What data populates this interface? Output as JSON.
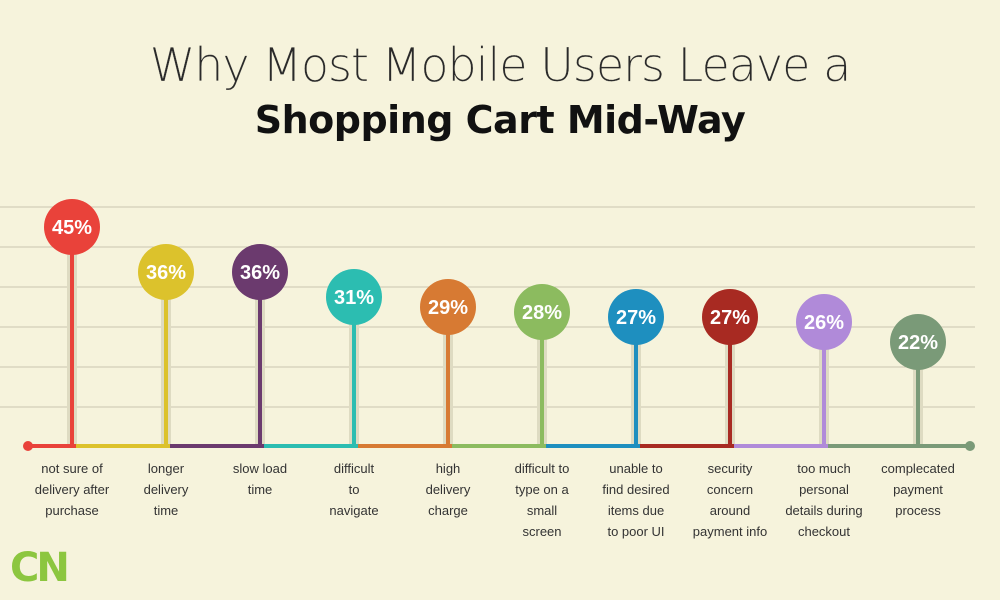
{
  "title": {
    "line1": "Why Most Mobile Users Leave a",
    "line2": "Shopping Cart Mid-Way"
  },
  "logo": "CN",
  "chart_data": {
    "type": "bar",
    "ylim": [
      0,
      60
    ],
    "grid": true,
    "categories": [
      [
        "not sure of",
        "delivery after",
        "purchase"
      ],
      [
        "longer",
        "delivery",
        "time"
      ],
      [
        "slow load",
        "time"
      ],
      [
        "difficult",
        "to",
        "navigate"
      ],
      [
        "high",
        "delivery",
        "charge"
      ],
      [
        "difficult to",
        "type on a",
        "small",
        "screen"
      ],
      [
        "unable to",
        "find desired",
        "items due",
        "to poor UI"
      ],
      [
        "security",
        "concern",
        "around",
        "payment info"
      ],
      [
        "too much",
        "personal",
        "details during",
        "checkout"
      ],
      [
        "complecated",
        "payment",
        "process"
      ]
    ],
    "values": [
      45,
      36,
      36,
      31,
      29,
      28,
      27,
      27,
      26,
      22
    ],
    "labels": [
      "45%",
      "36%",
      "36%",
      "31%",
      "29%",
      "28%",
      "27%",
      "27%",
      "26%",
      "22%"
    ],
    "colors": [
      "#e9423a",
      "#dcc22c",
      "#6b3a6e",
      "#2cbdb1",
      "#d77a33",
      "#8cbb5f",
      "#1e8fbf",
      "#a82a22",
      "#b08ad9",
      "#7a9a78"
    ]
  }
}
